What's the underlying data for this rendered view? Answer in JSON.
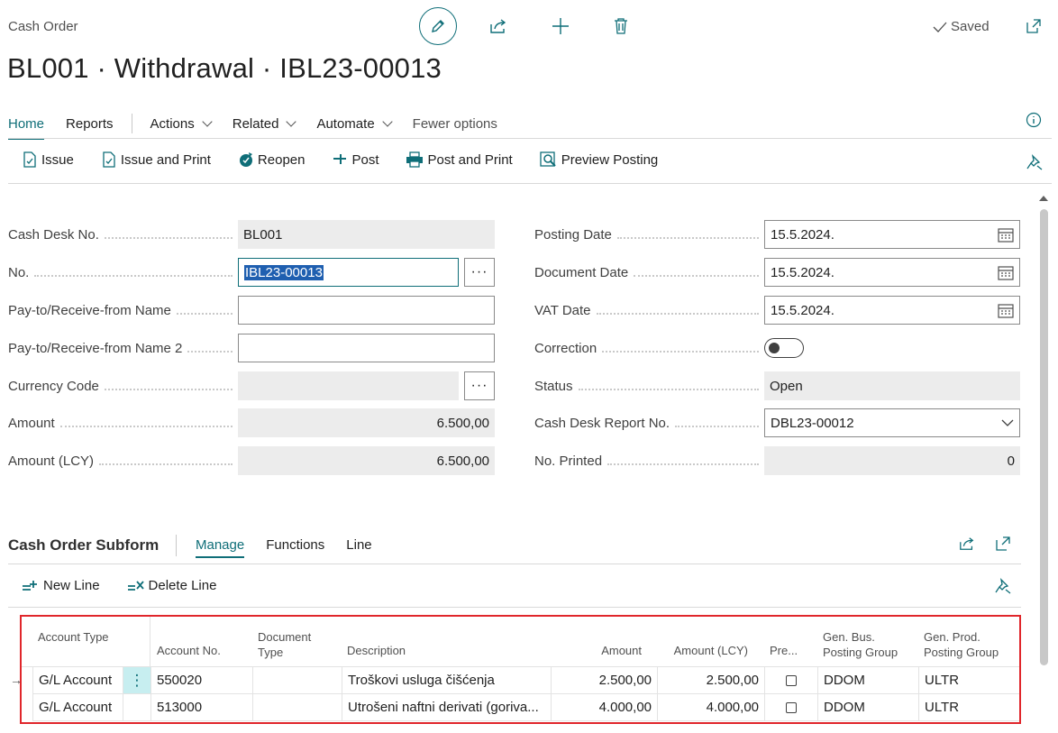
{
  "header": {
    "caption": "Cash Order",
    "title": "BL001 · Withdrawal · IBL23-00013",
    "saved_label": "Saved"
  },
  "tabs": [
    {
      "label": "Home"
    },
    {
      "label": "Reports"
    },
    {
      "label": "Actions"
    },
    {
      "label": "Related"
    },
    {
      "label": "Automate"
    },
    {
      "label": "Fewer options"
    }
  ],
  "actions": {
    "issue": "Issue",
    "issue_print": "Issue and Print",
    "reopen": "Reopen",
    "post": "Post",
    "post_print": "Post and Print",
    "preview_posting": "Preview Posting"
  },
  "left_fields": {
    "cash_desk_no": {
      "label": "Cash Desk No.",
      "value": "BL001"
    },
    "no": {
      "label": "No.",
      "value": "IBL23-00013"
    },
    "pay_to_name": {
      "label": "Pay-to/Receive-from Name",
      "value": ""
    },
    "pay_to_name2": {
      "label": "Pay-to/Receive-from Name 2",
      "value": ""
    },
    "currency_code": {
      "label": "Currency Code",
      "value": ""
    },
    "amount": {
      "label": "Amount",
      "value": "6.500,00"
    },
    "amount_lcy": {
      "label": "Amount (LCY)",
      "value": "6.500,00"
    }
  },
  "right_fields": {
    "posting_date": {
      "label": "Posting Date",
      "value": "15.5.2024."
    },
    "document_date": {
      "label": "Document Date",
      "value": "15.5.2024."
    },
    "vat_date": {
      "label": "VAT Date",
      "value": "15.5.2024."
    },
    "correction": {
      "label": "Correction",
      "value": false
    },
    "status": {
      "label": "Status",
      "value": "Open"
    },
    "cash_desk_report_no": {
      "label": "Cash Desk Report No.",
      "value": "DBL23-00012"
    },
    "no_printed": {
      "label": "No. Printed",
      "value": "0"
    }
  },
  "subform": {
    "title": "Cash Order Subform",
    "tabs": [
      "Manage",
      "Functions",
      "Line"
    ],
    "new_line": "New Line",
    "delete_line": "Delete Line",
    "columns": {
      "account_type": "Account Type",
      "account_no": "Account No.",
      "document_type": "Document Type",
      "description": "Description",
      "amount": "Amount",
      "amount_lcy": "Amount (LCY)",
      "pre": "Pre...",
      "gen_bus": "Gen. Bus. Posting Group",
      "gen_prod": "Gen. Prod. Posting Group"
    },
    "rows": [
      {
        "account_type": "G/L Account",
        "account_no": "550020",
        "document_type": "",
        "description": "Troškovi usluga čišćenja",
        "amount": "2.500,00",
        "amount_lcy": "2.500,00",
        "gen_bus": "DDOM",
        "gen_prod": "ULTR"
      },
      {
        "account_type": "G/L Account",
        "account_no": "513000",
        "document_type": "",
        "description": "Utrošeni naftni derivati (goriva...",
        "amount": "4.000,00",
        "amount_lcy": "4.000,00",
        "gen_bus": "DDOM",
        "gen_prod": "ULTR"
      }
    ]
  },
  "colors": {
    "accent": "#0f6e78",
    "highlight_border": "#e0262b"
  }
}
